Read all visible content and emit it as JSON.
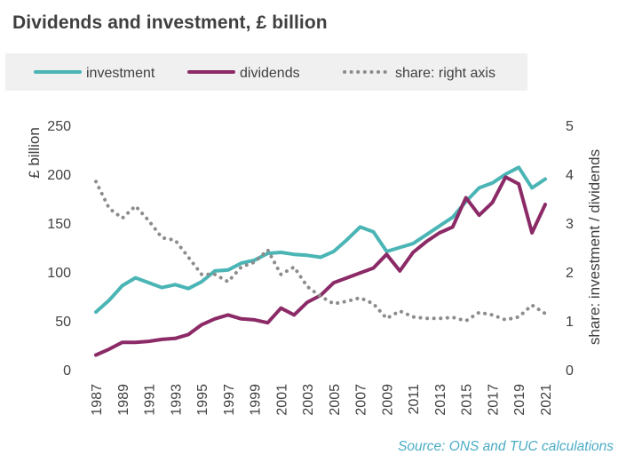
{
  "chart_data": {
    "type": "line",
    "title": "Dividends and investment, £ billion",
    "source": "Source: ONS and TUC calculations",
    "x": [
      1987,
      1988,
      1989,
      1990,
      1991,
      1992,
      1993,
      1994,
      1995,
      1996,
      1997,
      1998,
      1999,
      2000,
      2001,
      2002,
      2003,
      2004,
      2005,
      2006,
      2007,
      2008,
      2009,
      2010,
      2011,
      2012,
      2013,
      2014,
      2015,
      2016,
      2017,
      2018,
      2019,
      2020,
      2021
    ],
    "x_tick_labels": [
      "1987",
      "1989",
      "1991",
      "1993",
      "1995",
      "1997",
      "1999",
      "2001",
      "2003",
      "2005",
      "2007",
      "2009",
      "2011",
      "2013",
      "2015",
      "2017",
      "2019",
      "2021"
    ],
    "ylabel": "£ billion",
    "y2label": "share: investment / dividends",
    "ylim": [
      0,
      250
    ],
    "y_ticks": [
      "0",
      "50",
      "100",
      "150",
      "200",
      "250"
    ],
    "y2lim": [
      0,
      5
    ],
    "y2_ticks": [
      "0",
      "1",
      "2",
      "3",
      "4",
      "5"
    ],
    "grid": false,
    "legend_position": "top",
    "series": [
      {
        "name": "investment",
        "axis": "left",
        "style": "solid",
        "color": "#4bb5b5",
        "values": [
          59,
          71,
          86,
          94,
          89,
          84,
          87,
          83,
          90,
          101,
          102,
          109,
          112,
          119,
          120,
          118,
          117,
          115,
          121,
          133,
          146,
          141,
          121,
          125,
          129,
          138,
          147,
          156,
          172,
          186,
          191,
          200,
          207,
          186,
          195
        ]
      },
      {
        "name": "dividends",
        "axis": "left",
        "style": "solid",
        "color": "#8b2a66",
        "values": [
          15,
          21,
          28,
          28,
          29,
          31,
          32,
          36,
          46,
          52,
          56,
          52,
          51,
          48,
          63,
          56,
          69,
          76,
          89,
          94,
          99,
          104,
          118,
          101,
          120,
          131,
          140,
          146,
          176,
          158,
          171,
          197,
          190,
          140,
          169
        ]
      },
      {
        "name": "share: right axis",
        "axis": "right",
        "style": "dotted",
        "color": "#8c8c8c",
        "values": [
          3.85,
          3.3,
          3.1,
          3.35,
          3.05,
          2.7,
          2.65,
          2.3,
          1.95,
          1.95,
          1.8,
          2.1,
          2.2,
          2.45,
          1.95,
          2.1,
          1.7,
          1.5,
          1.35,
          1.4,
          1.47,
          1.35,
          1.05,
          1.2,
          1.08,
          1.05,
          1.05,
          1.07,
          1.0,
          1.17,
          1.12,
          1.02,
          1.08,
          1.32,
          1.15
        ]
      }
    ]
  }
}
